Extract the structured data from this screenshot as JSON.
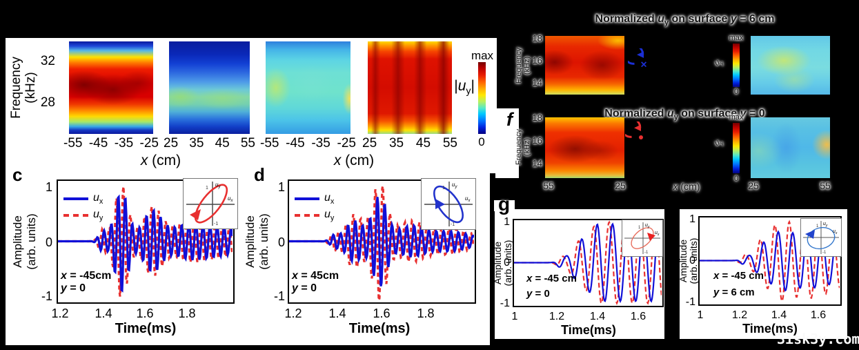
{
  "watermark": "3isk3y.com",
  "colors": {
    "background": "#000000",
    "ux_line": "#1010d8",
    "uy_line": "#e83030",
    "heatmap_palette": "jet",
    "rotation_icon_blue": "#1b2fd4",
    "rotation_icon_red": "#e83030"
  },
  "spectral_panel": {
    "ylabel1": "Frequency",
    "ylabel2": "(kHz)",
    "yticks": [
      "32",
      "28"
    ],
    "xlabel_var": "x",
    "xlabel_rest": " (cm)",
    "colorbar": {
      "max": "max",
      "min": "0",
      "l1": "|",
      "lu": "u",
      "lsub": "y",
      "l2": "|"
    },
    "maps": [
      {
        "xticks": [
          "-55",
          "-45",
          "-35",
          "-25"
        ]
      },
      {
        "xticks": [
          "25",
          "35",
          "45",
          "55"
        ]
      },
      {
        "xticks": [
          "-55",
          "-45",
          "-35",
          "-25"
        ]
      },
      {
        "xticks": [
          "25",
          "35",
          "45",
          "55"
        ]
      }
    ]
  },
  "f_panel": {
    "label": "f",
    "title_top": {
      "a": "Normalized ",
      "u": "u",
      "sub": "y",
      "b": " on surface ",
      "y": "y",
      "c": " = 6 cm"
    },
    "title_bottom": {
      "a": "Normalized ",
      "u": "u",
      "sub": "y",
      "b": " on surface ",
      "y": "y",
      "c": " = 0"
    },
    "ylabel": "Frequency (kHz)",
    "yticks": [
      "18",
      "16",
      "14"
    ],
    "cb": {
      "max": "max",
      "min": "0",
      "u": "u",
      "sub": "y"
    },
    "xlabel_var": "x",
    "xlabel_rest": " (cm)",
    "left_map_xticks": [
      "55",
      "25"
    ],
    "right_map_xticks": [
      "25",
      "55"
    ],
    "into_page_symbol": "×"
  },
  "panel_c": {
    "label": "c",
    "ylabel1": "Amplitude",
    "ylabel2": "(arb. units)",
    "yticks": [
      "1",
      "0",
      "-1"
    ],
    "xticks": [
      "1.2",
      "1.4",
      "1.6",
      "1.8"
    ],
    "xlabel": "Time(ms)",
    "legend": [
      {
        "u": "u",
        "s": "x"
      },
      {
        "u": "u",
        "s": "y"
      }
    ],
    "ann": [
      {
        "v": "x",
        "r": " = -45cm"
      },
      {
        "v": "y",
        "r": " = 0"
      }
    ],
    "ins": {
      "uy": "u",
      "uys": "y",
      "ux": "u",
      "uxs": "x",
      "p1": "1",
      "m1": "-1"
    }
  },
  "panel_d": {
    "label": "d",
    "ylabel1": "Amplitude",
    "ylabel2": "(arb. units)",
    "yticks": [
      "1",
      "0",
      "-1"
    ],
    "xticks": [
      "1.2",
      "1.4",
      "1.6",
      "1.8"
    ],
    "xlabel": "Time(ms)",
    "legend": [
      {
        "u": "u",
        "s": "x"
      },
      {
        "u": "u",
        "s": "y"
      }
    ],
    "ann": [
      {
        "v": "x",
        "r": " = 45cm"
      },
      {
        "v": "y",
        "r": " = 0"
      }
    ],
    "ins": {
      "uy": "u",
      "uys": "y",
      "ux": "u",
      "uxs": "x",
      "p1": "1",
      "m1": "-1"
    }
  },
  "panel_g": {
    "label": "g",
    "plots": [
      {
        "ylabel1": "Amplitude",
        "ylabel2": "(arb. units)",
        "yticks": [
          "1",
          "0",
          "-1"
        ],
        "xticks": [
          "1",
          "1.2",
          "1.4",
          "1.6"
        ],
        "xlabel": "Time(ms)",
        "ann": [
          {
            "v": "x",
            "r": " = -45 cm"
          },
          {
            "v": "y",
            "r": " =  0"
          }
        ],
        "ins": {
          "uy": "u",
          "uys": "y",
          "ux": "u",
          "uxs": "x",
          "p1": "1",
          "m1": "-1"
        }
      },
      {
        "ylabel1": "Amplitude",
        "ylabel2": "(arb. units)",
        "yticks": [
          "1",
          "0",
          "-1"
        ],
        "xticks": [
          "1",
          "1.2",
          "1.4",
          "1.6"
        ],
        "xlabel": "Time(ms)",
        "ann": [
          {
            "v": "x",
            "r": " = -45 cm"
          },
          {
            "v": "y",
            "r": " =  6 cm"
          }
        ],
        "ins": {
          "uy": "u",
          "uys": "y",
          "ux": "u",
          "uxs": "x",
          "p1": "1",
          "m1": "-1"
        }
      }
    ]
  },
  "chart_data": [
    {
      "id": "spectral_maps",
      "type": "heatmap",
      "ylabel": "Frequency (kHz)",
      "yticks": [
        32,
        28
      ],
      "y_range_khz": [
        25,
        34
      ],
      "colorbar": {
        "top": "max",
        "bottom": "0",
        "quantity": "|u_y|"
      },
      "maps": [
        {
          "x_range_cm": [
            -55,
            -25
          ],
          "xticks": [
            -55,
            -45,
            -35,
            -25
          ],
          "appearance": "strong red band centered near 28-30 kHz, blue at top and bottom edges"
        },
        {
          "x_range_cm": [
            25,
            55
          ],
          "xticks": [
            25,
            35,
            45,
            55
          ],
          "appearance": "mostly blue, weak green-cyan horizontal band slightly below 28 kHz"
        },
        {
          "x_range_cm": [
            -55,
            -25
          ],
          "xticks": [
            -55,
            -45,
            -35,
            -25
          ],
          "appearance": "mostly cyan, faint green vertical streak at left and yellow sliver at right edge"
        },
        {
          "x_range_cm": [
            25,
            55
          ],
          "xticks": [
            25,
            35,
            45,
            55
          ],
          "appearance": "strong red with four darker red vertical bands across x"
        }
      ]
    },
    {
      "id": "f_maps",
      "type": "heatmap",
      "title_top": "Normalized u_y on surface y = 6 cm",
      "title_bottom": "Normalized u_y on surface y = 0",
      "ylabel": "Frequency (kHz)",
      "yticks": [
        18,
        16,
        14
      ],
      "xlabel": "x (cm)",
      "colorbar": {
        "top": "max",
        "bottom": "0",
        "quantity": "u_y"
      },
      "rows": [
        {
          "surface": "y = 6 cm",
          "rotation_icon": "blue circular arrow with x (into page)",
          "left_map": {
            "xticks": [
              55,
              25
            ],
            "appearance": "strong red, darkest at left and right-center"
          },
          "right_map": {
            "xticks": [
              25,
              55
            ],
            "appearance": "pale cyan with yellow-green blob left of center"
          }
        },
        {
          "surface": "y = 0",
          "rotation_icon": "red circular arrow with dot (out of page)",
          "left_map": {
            "xticks": [
              55,
              25
            ],
            "appearance": "red-orange, dark red center-left, green lower corners"
          },
          "right_map": {
            "xticks": [
              25,
              55
            ],
            "appearance": "cyan-blue with yellow-orange blob at right edge"
          }
        }
      ]
    },
    {
      "id": "c",
      "type": "line",
      "title": "",
      "xlabel": "Time(ms)",
      "ylabel": "Amplitude (arb. units)",
      "x_range": [
        1.2,
        2.01
      ],
      "y_range": [
        -1,
        1
      ],
      "x_ticks": [
        1.2,
        1.4,
        1.6,
        1.8
      ],
      "y_ticks": [
        1,
        0,
        -1
      ],
      "annotation": "x = -45cm, y = 0",
      "carrier_khz": 30,
      "clip": 1.02,
      "polarization_inset": "red ellipse tilted toward +x+y, arrow lower-left",
      "series": [
        {
          "name": "u_x",
          "color": "#1010d8",
          "style": "solid",
          "width": 3.2,
          "phase_deg": 0,
          "amp_scale": 1.0
        },
        {
          "name": "u_y",
          "color": "#e83030",
          "style": "dashed",
          "dash": "6 4.5",
          "width": 3.2,
          "phase_deg": 100,
          "amp_scale": 1.12
        }
      ],
      "envelope_bursts": [
        {
          "t": 1.4,
          "s": 0.018,
          "a": 0.18
        },
        {
          "t": 1.49,
          "s": 0.032,
          "a": 0.95
        },
        {
          "t": 1.635,
          "s": 0.045,
          "a": 0.55
        },
        {
          "t": 1.8,
          "s": 0.08,
          "a": 0.28
        },
        {
          "t": 1.97,
          "s": 0.1,
          "a": 0.24
        }
      ]
    },
    {
      "id": "d",
      "type": "line",
      "title": "",
      "xlabel": "Time(ms)",
      "ylabel": "Amplitude (arb. units)",
      "x_range": [
        1.2,
        2.02
      ],
      "y_range": [
        -1,
        1
      ],
      "x_ticks": [
        1.2,
        1.4,
        1.6,
        1.8
      ],
      "y_ticks": [
        1,
        0,
        -1
      ],
      "annotation": "x = 45cm, y = 0",
      "carrier_khz": 30,
      "clip": 1.02,
      "polarization_inset": "blue ellipse tilted toward +x-y, arrow mid-left pointing right",
      "series": [
        {
          "name": "u_x",
          "color": "#1010d8",
          "style": "solid",
          "width": 3.2,
          "phase_deg": 0,
          "amp_scale": 0.85
        },
        {
          "name": "u_y",
          "color": "#e83030",
          "style": "dashed",
          "dash": "6 4.5",
          "width": 3.2,
          "phase_deg": 100,
          "amp_scale": 1.12
        }
      ],
      "envelope_bursts": [
        {
          "t": 1.38,
          "s": 0.018,
          "a": 0.12
        },
        {
          "t": 1.47,
          "s": 0.04,
          "a": 0.45
        },
        {
          "t": 1.585,
          "s": 0.033,
          "a": 0.98
        },
        {
          "t": 1.72,
          "s": 0.06,
          "a": 0.3
        },
        {
          "t": 1.9,
          "s": 0.1,
          "a": 0.22
        }
      ]
    },
    {
      "id": "gl",
      "type": "line",
      "title": "",
      "xlabel": "Time(ms)",
      "ylabel": "Amplitude (arb. units)",
      "x_range": [
        1.0,
        1.71
      ],
      "y_range": [
        -1,
        1
      ],
      "x_ticks": [
        1,
        1.2,
        1.4,
        1.6
      ],
      "y_ticks": [
        1,
        0,
        -1
      ],
      "annotation": "x = -45 cm, y = 0",
      "carrier_khz": 13.5,
      "clip": 1.0,
      "polarization_inset": "thin red ellipse, arrow at right",
      "series": [
        {
          "name": "u_x",
          "color": "#1010d8",
          "style": "solid",
          "width": 2.2,
          "phase_deg": 0,
          "amp_scale": 1.0
        },
        {
          "name": "u_y",
          "color": "#e83030",
          "style": "dashed",
          "dash": "7 4",
          "width": 2.2,
          "phase_deg": 80,
          "amp_scale": 1.05
        }
      ],
      "envelope_bursts": [
        {
          "t": 1.215,
          "s": 0.018,
          "a": 0.1
        },
        {
          "t": 1.3,
          "s": 0.04,
          "a": 0.38
        },
        {
          "t": 1.4,
          "s": 0.055,
          "a": 0.8
        },
        {
          "t": 1.52,
          "s": 0.07,
          "a": 0.95
        },
        {
          "t": 1.66,
          "s": 0.09,
          "a": 0.95
        },
        {
          "t": 1.85,
          "s": 0.1,
          "a": 0.9
        }
      ]
    },
    {
      "id": "gr",
      "type": "line",
      "title": "",
      "xlabel": "Time(ms)",
      "ylabel": "Amplitude (arb. units)",
      "x_range": [
        1.0,
        1.72
      ],
      "y_range": [
        -1,
        1
      ],
      "x_ticks": [
        1,
        1.2,
        1.4,
        1.6
      ],
      "y_ticks": [
        1,
        0,
        -1
      ],
      "annotation": "x = -45 cm, y = 6 cm",
      "carrier_khz": 13.5,
      "clip": 1.0,
      "polarization_inset": "thin blue near-circle, arrow at left",
      "series": [
        {
          "name": "u_x",
          "color": "#1010d8",
          "style": "solid",
          "width": 2.2,
          "phase_deg": 0,
          "amp_scale": 0.78
        },
        {
          "name": "u_y",
          "color": "#e83030",
          "style": "dashed",
          "dash": "7 4",
          "width": 2.2,
          "phase_deg": 85,
          "amp_scale": 1.05
        }
      ],
      "envelope_bursts": [
        {
          "t": 1.215,
          "s": 0.018,
          "a": 0.1
        },
        {
          "t": 1.3,
          "s": 0.04,
          "a": 0.35
        },
        {
          "t": 1.4,
          "s": 0.055,
          "a": 0.85
        },
        {
          "t": 1.52,
          "s": 0.06,
          "a": 0.65
        },
        {
          "t": 1.63,
          "s": 0.07,
          "a": 0.55
        },
        {
          "t": 1.78,
          "s": 0.09,
          "a": 0.5
        }
      ]
    }
  ]
}
